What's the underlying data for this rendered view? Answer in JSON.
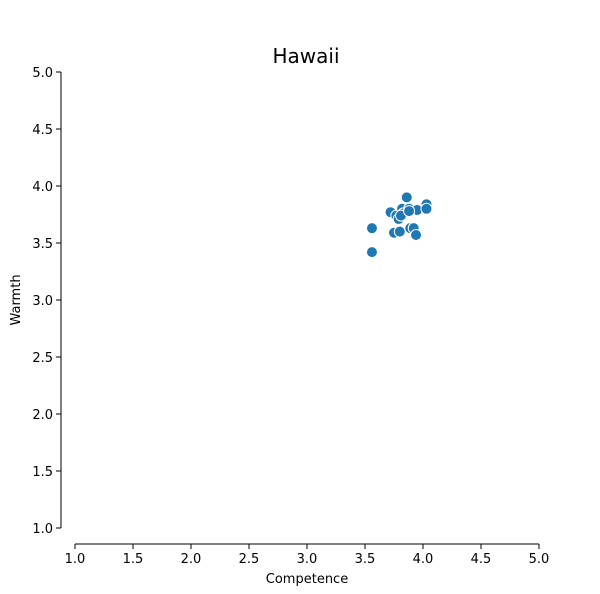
{
  "chart_data": {
    "type": "scatter",
    "title": "Hawaii",
    "xlabel": "Competence",
    "ylabel": "Warmth",
    "xlim": [
      1.0,
      5.0
    ],
    "ylim": [
      1.0,
      5.0
    ],
    "xticks": [
      "1.0",
      "1.5",
      "2.0",
      "2.5",
      "3.0",
      "3.5",
      "4.0",
      "4.5",
      "5.0"
    ],
    "yticks": [
      "1.0",
      "1.5",
      "2.0",
      "2.5",
      "3.0",
      "3.5",
      "4.0",
      "4.5",
      "5.0"
    ],
    "grid": false,
    "color": "#1f77b4",
    "points": [
      {
        "x": 3.56,
        "y": 3.63
      },
      {
        "x": 3.56,
        "y": 3.42
      },
      {
        "x": 3.72,
        "y": 3.77
      },
      {
        "x": 3.75,
        "y": 3.59
      },
      {
        "x": 3.77,
        "y": 3.74
      },
      {
        "x": 3.79,
        "y": 3.71
      },
      {
        "x": 3.8,
        "y": 3.6
      },
      {
        "x": 3.82,
        "y": 3.8
      },
      {
        "x": 3.83,
        "y": 3.76
      },
      {
        "x": 3.86,
        "y": 3.9
      },
      {
        "x": 3.88,
        "y": 3.8
      },
      {
        "x": 3.89,
        "y": 3.63
      },
      {
        "x": 3.92,
        "y": 3.63
      },
      {
        "x": 3.94,
        "y": 3.57
      },
      {
        "x": 3.95,
        "y": 3.79
      },
      {
        "x": 4.03,
        "y": 3.84
      },
      {
        "x": 4.03,
        "y": 3.8
      },
      {
        "x": 3.81,
        "y": 3.74
      },
      {
        "x": 3.88,
        "y": 3.78
      }
    ]
  }
}
